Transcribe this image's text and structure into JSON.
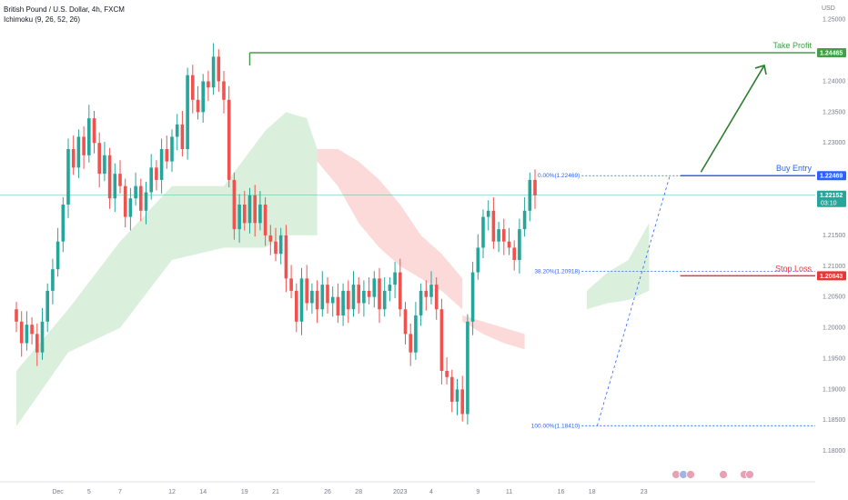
{
  "chart_data": {
    "type": "candlestick",
    "title": "British Pound / U.S. Dollar, 4h, FXCM",
    "indicator": "Ichimoku (9, 26, 52, 26)",
    "currency": "USD",
    "ylim": [
      1.175,
      1.2532
    ],
    "y_ticks": [
      {
        "label": "1.25000",
        "value": 1.25
      },
      {
        "label": "1.24000",
        "value": 1.24
      },
      {
        "label": "1.23500",
        "value": 1.235
      },
      {
        "label": "1.23000",
        "value": 1.23
      },
      {
        "label": "1.21500",
        "value": 1.215
      },
      {
        "label": "1.21000",
        "value": 1.21
      },
      {
        "label": "1.20500",
        "value": 1.205
      },
      {
        "label": "1.20000",
        "value": 1.2
      },
      {
        "label": "1.19500",
        "value": 1.195
      },
      {
        "label": "1.19000",
        "value": 1.19
      },
      {
        "label": "1.18500",
        "value": 1.185
      },
      {
        "label": "1.18000",
        "value": 1.18
      }
    ],
    "x_ticks": [
      "Dec",
      "5",
      "7",
      "12",
      "14",
      "19",
      "21",
      "26",
      "28",
      "2023",
      "4",
      "9",
      "11",
      "16",
      "18",
      "23"
    ],
    "tick_index": [
      8,
      14,
      20,
      30,
      36,
      44,
      50,
      60,
      66,
      74,
      80,
      89,
      95,
      105,
      111,
      121
    ],
    "bars_total": 128,
    "last_bar_index": 100,
    "closes": [
      1.201,
      1.1975,
      1.2005,
      1.199,
      1.196,
      1.201,
      1.206,
      1.2095,
      1.214,
      1.22,
      1.229,
      1.226,
      1.231,
      1.228,
      1.234,
      1.23,
      1.225,
      1.228,
      1.221,
      1.225,
      1.223,
      1.218,
      1.221,
      1.223,
      1.219,
      1.222,
      1.226,
      1.224,
      1.229,
      1.227,
      1.231,
      1.233,
      1.229,
      1.241,
      1.237,
      1.235,
      1.24,
      1.239,
      1.244,
      1.24,
      1.237,
      1.224,
      1.216,
      1.22,
      1.217,
      1.2215,
      1.217,
      1.22,
      1.215,
      1.214,
      1.212,
      1.215,
      1.208,
      1.206,
      1.201,
      1.208,
      1.204,
      1.206,
      1.203,
      1.207,
      1.204,
      1.205,
      1.202,
      1.206,
      1.203,
      1.207,
      1.204,
      1.206,
      1.205,
      1.208,
      1.203,
      1.206,
      1.207,
      1.209,
      1.203,
      1.199,
      1.196,
      1.202,
      1.206,
      1.205,
      1.207,
      1.203,
      1.193,
      1.192,
      1.188,
      1.19,
      1.186,
      1.201,
      1.209,
      1.213,
      1.218,
      1.219,
      1.214,
      1.216,
      1.214,
      1.213,
      1.211,
      1.216,
      1.219,
      1.224,
      1.2215
    ],
    "series": [
      {
        "name": "Price (GBPUSD)",
        "last": 1.22152,
        "last_label": "1.22152",
        "countdown": "03:10"
      }
    ],
    "cloud": [
      {
        "name": "Bullish cloud (Dec)",
        "x": [
          0,
          10,
          20,
          30,
          40,
          44,
          48,
          52,
          56,
          58
        ],
        "top": [
          1.193,
          1.203,
          1.214,
          1.223,
          1.223,
          1.2275,
          1.232,
          1.235,
          1.234,
          1.229
        ],
        "bottom": [
          1.184,
          1.196,
          1.2,
          1.211,
          1.213,
          1.213,
          1.213,
          1.215,
          1.215,
          1.215
        ]
      },
      {
        "name": "Bearish cloud",
        "x": [
          58,
          62,
          66,
          70,
          74,
          78,
          82,
          86
        ],
        "top": [
          1.229,
          1.229,
          1.227,
          1.224,
          1.22,
          1.215,
          1.212,
          1.208
        ],
        "bottom": [
          1.227,
          1.223,
          1.217,
          1.213,
          1.21,
          1.208,
          1.206,
          1.203
        ]
      },
      {
        "name": "Bearish cloud tail",
        "x": [
          86,
          90,
          94,
          98
        ],
        "top": [
          1.202,
          1.201,
          1.2,
          1.199
        ],
        "bottom": [
          1.201,
          1.199,
          1.1975,
          1.1965
        ]
      },
      {
        "name": "Bullish cloud (Jan)",
        "x": [
          110,
          114,
          118,
          122
        ],
        "top": [
          1.206,
          1.209,
          1.211,
          1.217
        ],
        "bottom": [
          1.203,
          1.204,
          1.2045,
          1.206
        ]
      }
    ],
    "fib_levels": [
      {
        "label": "0.00%(1.22469)",
        "value": 1.22469
      },
      {
        "label": "38.20%(1.20918)",
        "value": 1.20918
      },
      {
        "label": "100.00%(1.18410)",
        "value": 1.1841
      }
    ],
    "levels": {
      "take_profit": {
        "label": "Take Profit",
        "value": 1.24465,
        "value_label": "1.24465",
        "color": "#43a047"
      },
      "buy_entry": {
        "label": "Buy Entry",
        "value": 1.22469,
        "value_label": "1.22469",
        "color": "#2962ff"
      },
      "stop_loss": {
        "label": "Stop Loss",
        "value": 1.20843,
        "value_label": "1.20843",
        "color": "#e53935"
      }
    },
    "colors": {
      "up": "#26a69a",
      "down": "#ef5350",
      "cloud_up": "#d7eed8",
      "cloud_down": "#fbd6d5",
      "grid": "#ffffff"
    }
  }
}
